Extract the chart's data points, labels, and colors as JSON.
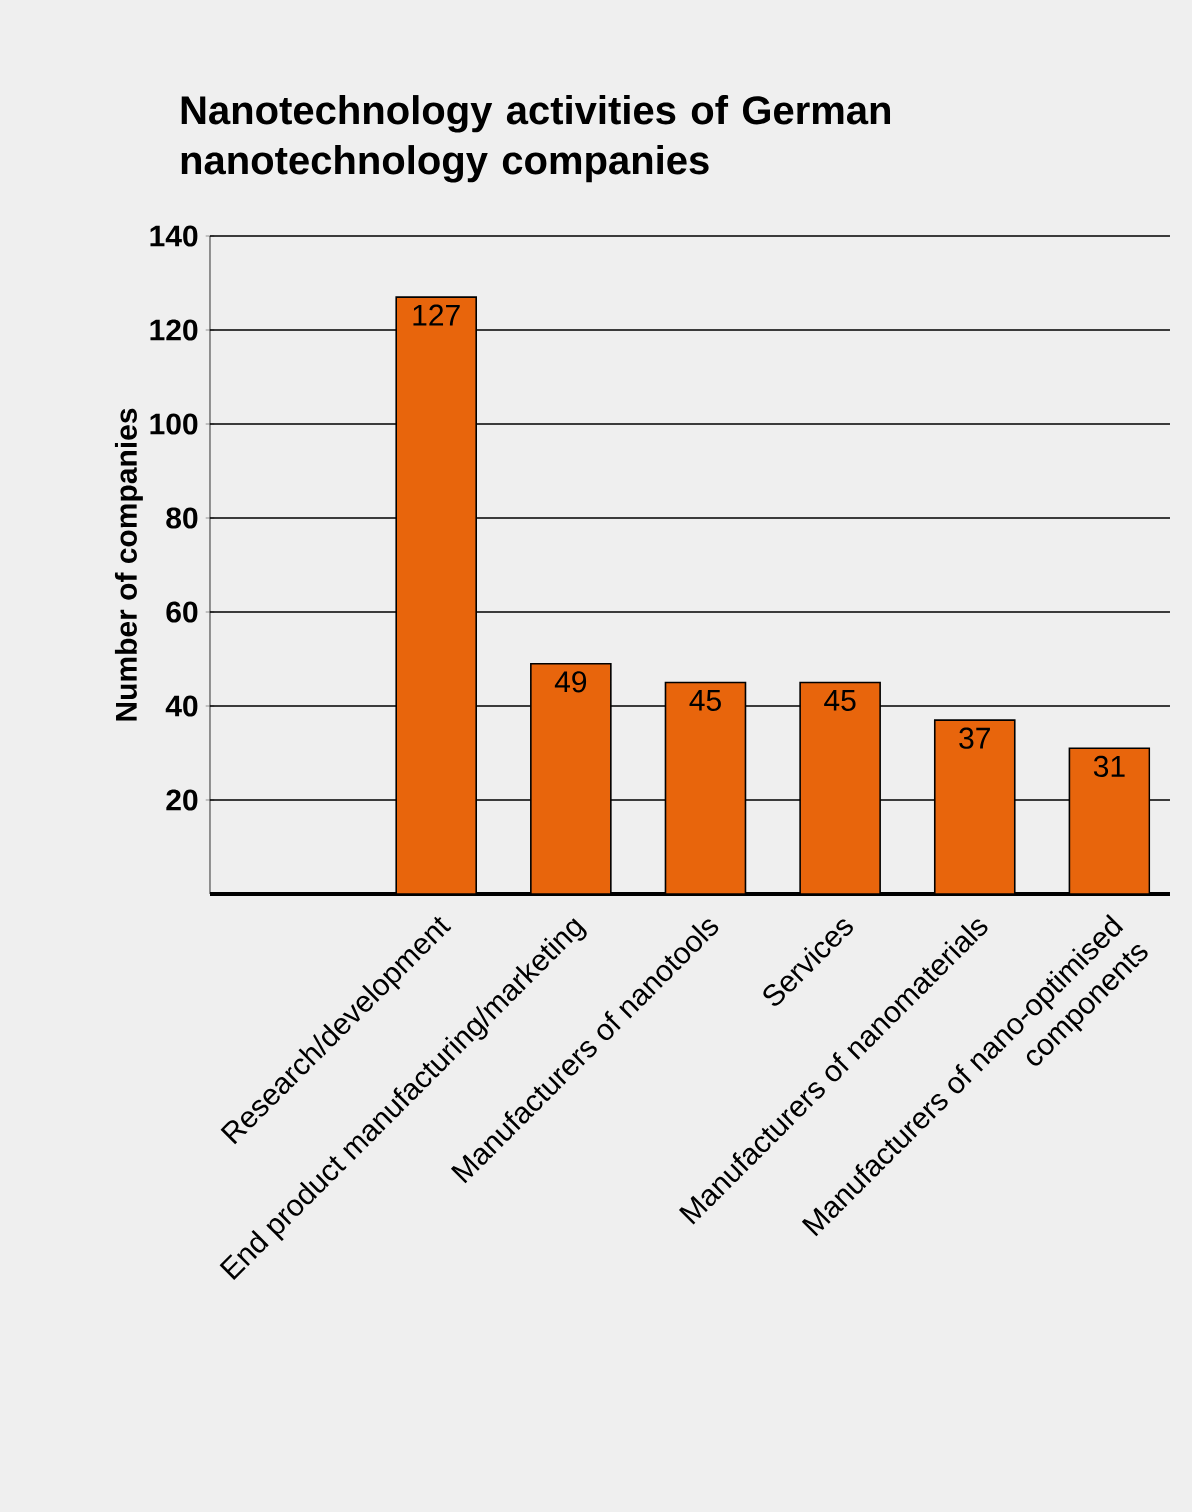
{
  "chart_data": {
    "type": "bar",
    "title": "Nanotechnology activities of German nanotechnology companies",
    "ylabel": "Number of companies",
    "categories": [
      "Research/development",
      "End product manufacturing/marketing",
      "Manufacturers of nanotools",
      "Services",
      "Manufacturers of nanomaterials",
      "Manufacturers of nano-optimised components"
    ],
    "values": [
      127,
      49,
      45,
      45,
      37,
      31
    ],
    "color": "#e8650c",
    "ylim": [
      0,
      140
    ],
    "yticks": [
      20,
      40,
      60,
      80,
      100,
      120,
      140
    ],
    "grid": "y",
    "data_labels": true
  }
}
